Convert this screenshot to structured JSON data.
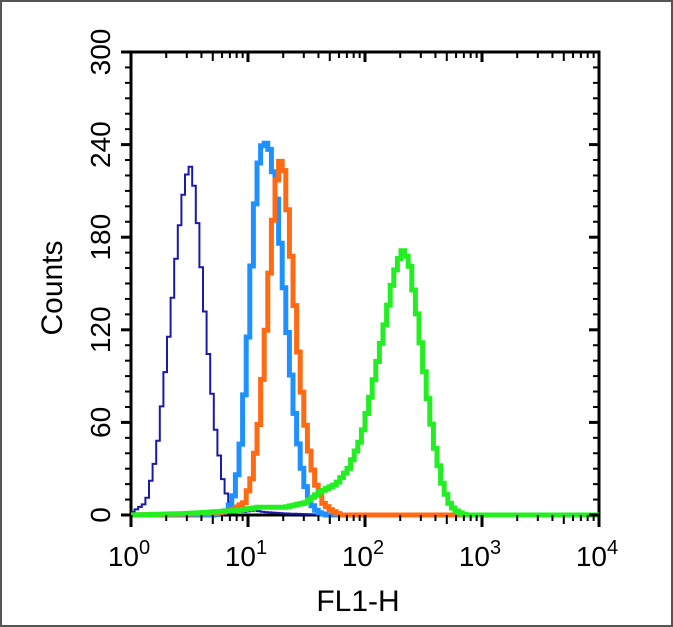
{
  "chart_data": {
    "type": "histogram",
    "title": "",
    "xlabel": "FL1-H",
    "ylabel": "Counts",
    "xscale": "log",
    "xlim": [
      1,
      10000
    ],
    "ylim": [
      0,
      300
    ],
    "x_ticks": [
      {
        "value": 1,
        "base": "10",
        "exp": "0"
      },
      {
        "value": 10,
        "base": "10",
        "exp": "1"
      },
      {
        "value": 100,
        "base": "10",
        "exp": "2"
      },
      {
        "value": 1000,
        "base": "10",
        "exp": "3"
      },
      {
        "value": 10000,
        "base": "10",
        "exp": "4"
      }
    ],
    "y_ticks": [
      "0",
      "60",
      "120",
      "180",
      "240",
      "300"
    ],
    "grid": false,
    "series": [
      {
        "color": "#1a1aa8",
        "line": "thin",
        "x": [
          1.0,
          1.3,
          1.6,
          2.0,
          2.4,
          2.8,
          3.1,
          3.4,
          3.8,
          4.3,
          5.0,
          5.8,
          6.5,
          7.5,
          9.0,
          11,
          13,
          20,
          50,
          10000
        ],
        "y": [
          2,
          8,
          40,
          110,
          175,
          218,
          226,
          210,
          165,
          115,
          60,
          25,
          10,
          4,
          2,
          3,
          2,
          1,
          0,
          0
        ]
      },
      {
        "color": "#1e90ff",
        "line": "thick",
        "x": [
          1.0,
          5.0,
          6.5,
          7.5,
          8.5,
          9.5,
          10.5,
          11.5,
          12.5,
          13.5,
          15,
          17,
          19,
          22,
          25,
          29,
          33,
          38,
          45,
          10000
        ],
        "y": [
          0,
          0,
          3,
          15,
          50,
          105,
          170,
          220,
          238,
          242,
          236,
          205,
          160,
          100,
          55,
          22,
          8,
          2,
          0,
          0
        ]
      },
      {
        "color": "#ff6a13",
        "line": "thick",
        "x": [
          1.0,
          5.0,
          7.0,
          9.0,
          10.5,
          12,
          13.5,
          15,
          16.5,
          18,
          19.5,
          21.5,
          24,
          27,
          31,
          36,
          42,
          50,
          60,
          10000
        ],
        "y": [
          0,
          1,
          3,
          8,
          25,
          60,
          110,
          165,
          210,
          230,
          225,
          190,
          140,
          90,
          48,
          22,
          8,
          3,
          0,
          0
        ]
      },
      {
        "color": "#22ee22",
        "line": "thick",
        "x": [
          1.0,
          3.0,
          8.0,
          12,
          20,
          30,
          40,
          55,
          70,
          90,
          110,
          140,
          170,
          200,
          230,
          270,
          320,
          380,
          450,
          520,
          600,
          700,
          10000
        ],
        "y": [
          0,
          1,
          3,
          5,
          5,
          8,
          15,
          20,
          30,
          50,
          80,
          120,
          155,
          172,
          165,
          130,
          85,
          45,
          18,
          6,
          2,
          0,
          0
        ]
      }
    ]
  }
}
